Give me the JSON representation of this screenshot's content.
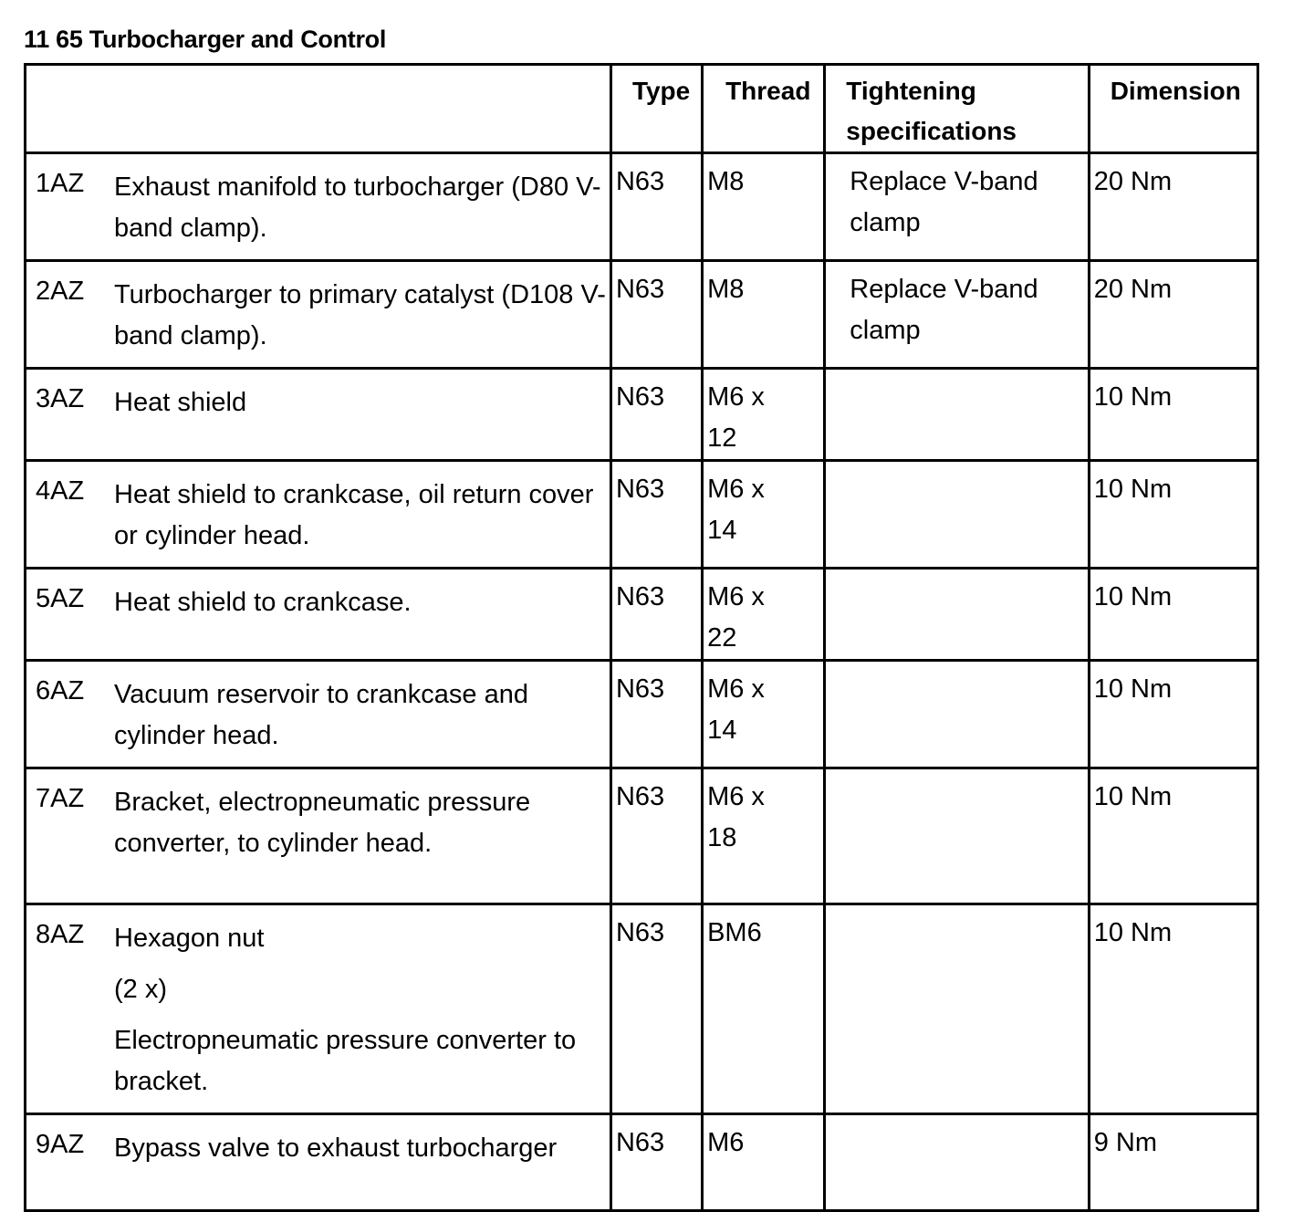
{
  "title": "11 65 Turbocharger and Control",
  "headers": {
    "description": "",
    "type": "Type",
    "thread": "Thread",
    "tightening": "Tightening specifications",
    "dimension": "Dimension"
  },
  "rows": [
    {
      "id": "1AZ",
      "description": [
        "Exhaust manifold to turbocharger (D80 V-band clamp)."
      ],
      "type": "N63",
      "thread": "M8",
      "tightening": "Replace V-band clamp",
      "dimension": "20 Nm",
      "h": 105
    },
    {
      "id": "2AZ",
      "description": [
        "Turbocharger to primary catalyst (D108 V-band clamp)."
      ],
      "type": "N63",
      "thread": "M8",
      "tightening": "Replace V-band clamp",
      "dimension": "20 Nm",
      "h": 104
    },
    {
      "id": "3AZ",
      "description": [
        "Heat shield"
      ],
      "type": "N63",
      "thread": "M6 x 12",
      "tightening": "",
      "dimension": "10 Nm",
      "h": 99
    },
    {
      "id": "4AZ",
      "description": [
        "Heat shield to crankcase, oil return cover or cylinder head."
      ],
      "type": "N63",
      "thread": "M6 x 14",
      "tightening": "",
      "dimension": "10 Nm",
      "h": 105
    },
    {
      "id": "5AZ",
      "description": [
        "Heat shield to crankcase."
      ],
      "type": "N63",
      "thread": "M6 x 22",
      "tightening": "",
      "dimension": "10 Nm",
      "h": 99
    },
    {
      "id": "6AZ",
      "description": [
        "Vacuum reservoir to crankcase and cylinder head."
      ],
      "type": "N63",
      "thread": "M6 x 14",
      "tightening": "",
      "dimension": "10 Nm",
      "h": 104
    },
    {
      "id": "7AZ",
      "description": [
        "Bracket, electropneumatic pressure converter, to cylinder head."
      ],
      "type": "N63",
      "thread": "M6 x 18",
      "tightening": "",
      "dimension": "10 Nm",
      "h": 149
    },
    {
      "id": "8AZ",
      "description": [
        "Hexagon nut",
        "(2 x)",
        "Electropneumatic pressure converter to bracket."
      ],
      "type": "N63",
      "thread": "BM6",
      "tightening": "",
      "dimension": "10 Nm",
      "h": 216
    },
    {
      "id": "9AZ",
      "description": [
        "Bypass valve to exhaust turbocharger"
      ],
      "type": "N63",
      "thread": "M6",
      "tightening": "",
      "dimension": "9 Nm",
      "h": 106
    }
  ]
}
